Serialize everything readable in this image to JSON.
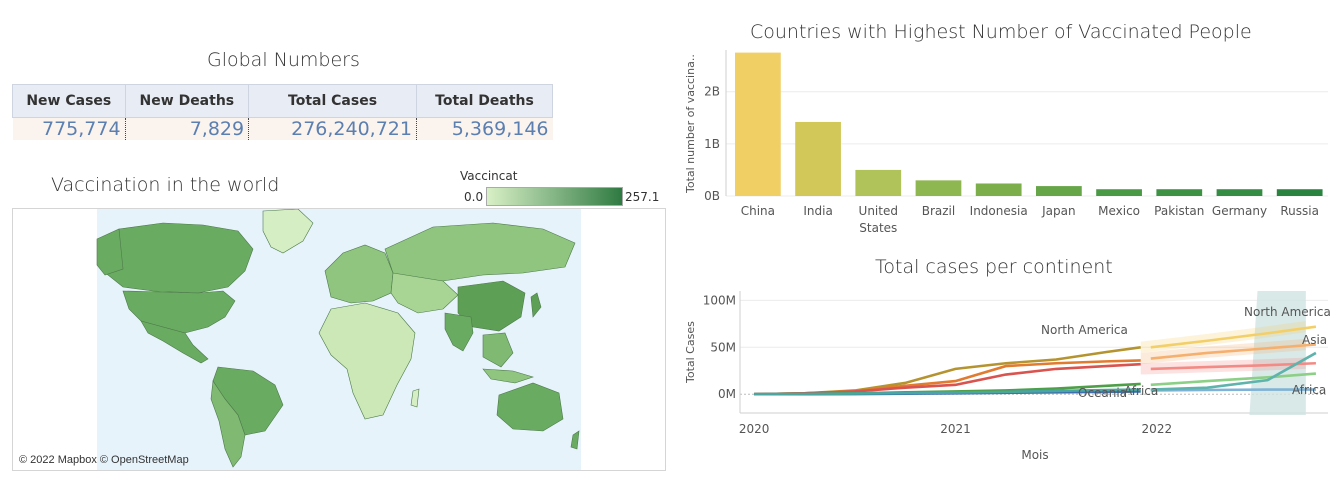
{
  "global_numbers": {
    "title": "Global Numbers",
    "headers": [
      "New Cases",
      "New Deaths",
      "Total Cases",
      "Total Deaths"
    ],
    "values": [
      "775,774",
      "7,829",
      "276,240,721",
      "5,369,146"
    ]
  },
  "map": {
    "title": "Vaccination in the world",
    "legend_title": "Vaccincat",
    "legend_min": "0.0",
    "legend_max": "257.1",
    "legend_colors": [
      "#d9f0c6",
      "#2f7a42"
    ],
    "attribution": "© 2022 Mapbox © OpenStreetMap",
    "ocean_color": "#e6f3fb"
  },
  "vaccinated": {
    "title": "Countries with Highest Number of Vaccinated People",
    "ylabel": "Total number of vaccina..",
    "tick_labels": [
      "2B",
      "1B",
      "0B"
    ],
    "categories": [
      "China",
      "India",
      "United States",
      "Brazil",
      "Indonesia",
      "Japan",
      "Mexico",
      "Pakistan",
      "Germany",
      "Russia"
    ],
    "category_lines": [
      [
        "China"
      ],
      [
        "India"
      ],
      [
        "United",
        "States"
      ],
      [
        "Brazil"
      ],
      [
        "Indonesia"
      ],
      [
        "Japan"
      ],
      [
        "Mexico"
      ],
      [
        "Pakistan"
      ],
      [
        "Germany"
      ],
      [
        "Russia"
      ]
    ]
  },
  "continents": {
    "title": "Total cases per continent",
    "ylabel": "Total Cases",
    "xlabel": "Mois",
    "y_ticks": [
      "100M",
      "50M",
      "0M"
    ],
    "x_ticks": [
      "2020",
      "2021",
      "2022"
    ],
    "labels": {
      "north_america_actual": "North America",
      "oceania": "Oceania",
      "africa_actual": "Africa",
      "north_america_forecast": "North America",
      "asia_forecast": "Asia",
      "africa_forecast": "Africa"
    }
  },
  "chart_data": [
    {
      "type": "bar",
      "title": "Countries with Highest Number of Vaccinated People",
      "ylabel": "Total number of vaccina..",
      "categories": [
        "China",
        "India",
        "United States",
        "Brazil",
        "Indonesia",
        "Japan",
        "Mexico",
        "Pakistan",
        "Germany",
        "Russia"
      ],
      "values": [
        2.75,
        1.42,
        0.5,
        0.3,
        0.24,
        0.19,
        0.13,
        0.13,
        0.13,
        0.13
      ],
      "value_unit": "B",
      "ylim": [
        0,
        2.8
      ],
      "colors": [
        "#f0cf65",
        "#d2c85a",
        "#afc35a",
        "#8fb751",
        "#7cae4c",
        "#66a548",
        "#4a9a45",
        "#3e9244",
        "#358c43",
        "#2a8440"
      ]
    },
    {
      "type": "line",
      "title": "Total cases per continent",
      "xlabel": "Mois",
      "ylabel": "Total Cases",
      "x": [
        2020.0,
        2020.25,
        2020.5,
        2020.75,
        2021.0,
        2021.25,
        2021.5,
        2021.75,
        2021.92
      ],
      "ylim": [
        -20,
        110
      ],
      "y_unit": "M",
      "series": [
        {
          "name": "North America",
          "color": "#b5942f",
          "values": [
            0,
            1,
            4,
            12,
            27,
            33,
            37,
            45,
            50
          ]
        },
        {
          "color": "#e07b2f",
          "values": [
            0,
            1,
            3,
            9,
            14,
            30,
            33,
            35,
            36
          ]
        },
        {
          "color": "#d9534f",
          "values": [
            0,
            1,
            3,
            7,
            10,
            21,
            27,
            30,
            32
          ]
        },
        {
          "color": "#4f9f48",
          "values": [
            0,
            0.5,
            1,
            2,
            3,
            4,
            6,
            9,
            11
          ]
        },
        {
          "name": "Oceania",
          "color": "#3d6fb0",
          "values": [
            0,
            0,
            0.2,
            0.5,
            1,
            1.5,
            2,
            2.5,
            3
          ]
        },
        {
          "name": "Africa",
          "color": "#4aa6a0",
          "values": [
            0,
            0.3,
            0.7,
            1.2,
            1.8,
            2.5,
            3.5,
            4.5,
            5
          ]
        }
      ],
      "forecast": {
        "x": [
          2021.92,
          2022.2,
          2022.5,
          2022.74
        ],
        "series": [
          {
            "name": "North America",
            "color": "#f3cf6a",
            "values": [
              50,
              57,
              65,
              72
            ]
          },
          {
            "color": "#f5b070",
            "values": [
              38,
              44,
              49,
              53
            ]
          },
          {
            "color": "#f28b86",
            "values": [
              27,
              29,
              31,
              33
            ]
          },
          {
            "name": "Asia",
            "color": "#8ccf86",
            "values": [
              10,
              14,
              18,
              22
            ]
          },
          {
            "name": "Africa",
            "color": "#7fb2d6",
            "values": [
              4,
              4.5,
              5,
              5
            ]
          },
          {
            "color": "#5fb3ad",
            "values": [
              5,
              7,
              15,
              44
            ]
          }
        ]
      }
    }
  ]
}
